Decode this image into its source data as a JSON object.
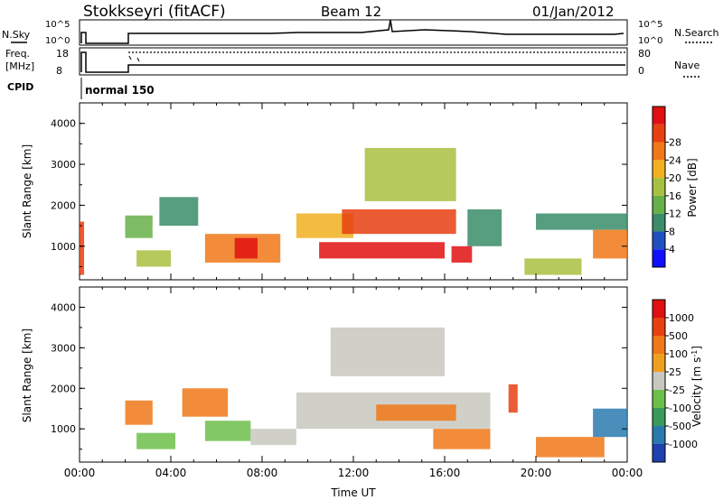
{
  "header": {
    "station": "Stokkseyri (fitACF)",
    "beam": "Beam 12",
    "date": "01/Jan/2012"
  },
  "params": {
    "nsky_label": "N.Sky",
    "nsky_ticks": [
      "10^5",
      "10^0"
    ],
    "nsearch_label": "N.Search",
    "nsearch_ticks": [
      "10^5",
      "10^0"
    ],
    "freq_label_line1": "Freq.",
    "freq_label_line2": "[MHz]",
    "freq_ticks": [
      "18",
      "8"
    ],
    "nave_label": "Nave",
    "nave_ticks": [
      "80",
      "0"
    ],
    "cpid_label": "CPID",
    "cpid_value": "normal 150"
  },
  "chart_data": [
    {
      "type": "heatmap",
      "panel": "power",
      "xlabel": "",
      "ylabel": "Slant Range [km]",
      "yticks": [
        "1000",
        "2000",
        "3000",
        "4000"
      ],
      "ylim": [
        180,
        4500
      ],
      "xlim": [
        0,
        24
      ],
      "colorbar_label": "Power [dB]",
      "colorbar_ticks": [
        "4",
        "8",
        "12",
        "16",
        "20",
        "24",
        "28"
      ],
      "colorbar_colors": [
        "#1010ff",
        "#2050c0",
        "#3a8c6a",
        "#66b04a",
        "#a8c040",
        "#f0b020",
        "#f07818",
        "#e84010",
        "#e01010"
      ],
      "regions": [
        {
          "t0": 0.0,
          "t1": 0.2,
          "r0": 300,
          "r1": 1600,
          "level": 7
        },
        {
          "t0": 2.0,
          "t1": 3.2,
          "r0": 1200,
          "r1": 1750,
          "level": 3
        },
        {
          "t0": 2.5,
          "t1": 4.0,
          "r0": 500,
          "r1": 900,
          "level": 4
        },
        {
          "t0": 3.5,
          "t1": 5.2,
          "r0": 1500,
          "r1": 2200,
          "level": 2
        },
        {
          "t0": 5.5,
          "t1": 8.8,
          "r0": 600,
          "r1": 1300,
          "level": 6
        },
        {
          "t0": 6.8,
          "t1": 7.8,
          "r0": 700,
          "r1": 1200,
          "level": 8
        },
        {
          "t0": 9.5,
          "t1": 12.0,
          "r0": 1200,
          "r1": 1800,
          "level": 5
        },
        {
          "t0": 10.5,
          "t1": 16.0,
          "r0": 700,
          "r1": 1100,
          "level": 8
        },
        {
          "t0": 11.5,
          "t1": 16.5,
          "r0": 1300,
          "r1": 1900,
          "level": 7
        },
        {
          "t0": 12.5,
          "t1": 16.5,
          "r0": 2100,
          "r1": 3400,
          "level": 4
        },
        {
          "t0": 16.3,
          "t1": 17.2,
          "r0": 600,
          "r1": 1000,
          "level": 8
        },
        {
          "t0": 17.0,
          "t1": 18.5,
          "r0": 1000,
          "r1": 1900,
          "level": 2
        },
        {
          "t0": 19.5,
          "t1": 22.0,
          "r0": 300,
          "r1": 700,
          "level": 4
        },
        {
          "t0": 20.0,
          "t1": 24.0,
          "r0": 1400,
          "r1": 1800,
          "level": 2
        },
        {
          "t0": 22.5,
          "t1": 24.0,
          "r0": 700,
          "r1": 1400,
          "level": 6
        }
      ]
    },
    {
      "type": "heatmap",
      "panel": "velocity",
      "xlabel": "Time UT",
      "ylabel": "Slant Range [km]",
      "yticks": [
        "1000",
        "2000",
        "3000",
        "4000"
      ],
      "ylim": [
        180,
        4500
      ],
      "xlim": [
        0,
        24
      ],
      "xticks": [
        "00:00",
        "04:00",
        "08:00",
        "12:00",
        "16:00",
        "20:00",
        "00:00"
      ],
      "colorbar_label": "Velocity [m s^-1]",
      "colorbar_label_main": "Velocity",
      "colorbar_label_unit": "[m s",
      "colorbar_label_exp": "-1",
      "colorbar_label_close": "]",
      "colorbar_ticks": [
        "1000",
        "500",
        "100",
        "25",
        "-25",
        "-100",
        "-500",
        "-1000"
      ],
      "colorbar_colors": [
        "#2040b0",
        "#2a7ab0",
        "#3a9a5a",
        "#6cc04a",
        "#c8c8c0",
        "#f0a020",
        "#f07818",
        "#e84010",
        "#e01010"
      ],
      "regions": [
        {
          "t0": 2.0,
          "t1": 3.2,
          "r0": 1100,
          "r1": 1700,
          "level": 6
        },
        {
          "t0": 2.5,
          "t1": 4.2,
          "r0": 500,
          "r1": 900,
          "level": 3
        },
        {
          "t0": 4.5,
          "t1": 6.5,
          "r0": 1300,
          "r1": 2000,
          "level": 6
        },
        {
          "t0": 5.5,
          "t1": 7.5,
          "r0": 700,
          "r1": 1200,
          "level": 3
        },
        {
          "t0": 7.5,
          "t1": 9.5,
          "r0": 600,
          "r1": 1000,
          "level": 4
        },
        {
          "t0": 9.5,
          "t1": 18.0,
          "r0": 1000,
          "r1": 1900,
          "level": 4
        },
        {
          "t0": 11.0,
          "t1": 16.0,
          "r0": 2300,
          "r1": 3500,
          "level": 4
        },
        {
          "t0": 13.0,
          "t1": 16.5,
          "r0": 1200,
          "r1": 1600,
          "level": 6
        },
        {
          "t0": 15.5,
          "t1": 18.0,
          "r0": 500,
          "r1": 1000,
          "level": 6
        },
        {
          "t0": 18.8,
          "t1": 19.2,
          "r0": 1400,
          "r1": 2100,
          "level": 7
        },
        {
          "t0": 20.0,
          "t1": 23.0,
          "r0": 300,
          "r1": 800,
          "level": 6
        },
        {
          "t0": 22.5,
          "t1": 24.0,
          "r0": 800,
          "r1": 1500,
          "level": 1
        }
      ]
    }
  ]
}
